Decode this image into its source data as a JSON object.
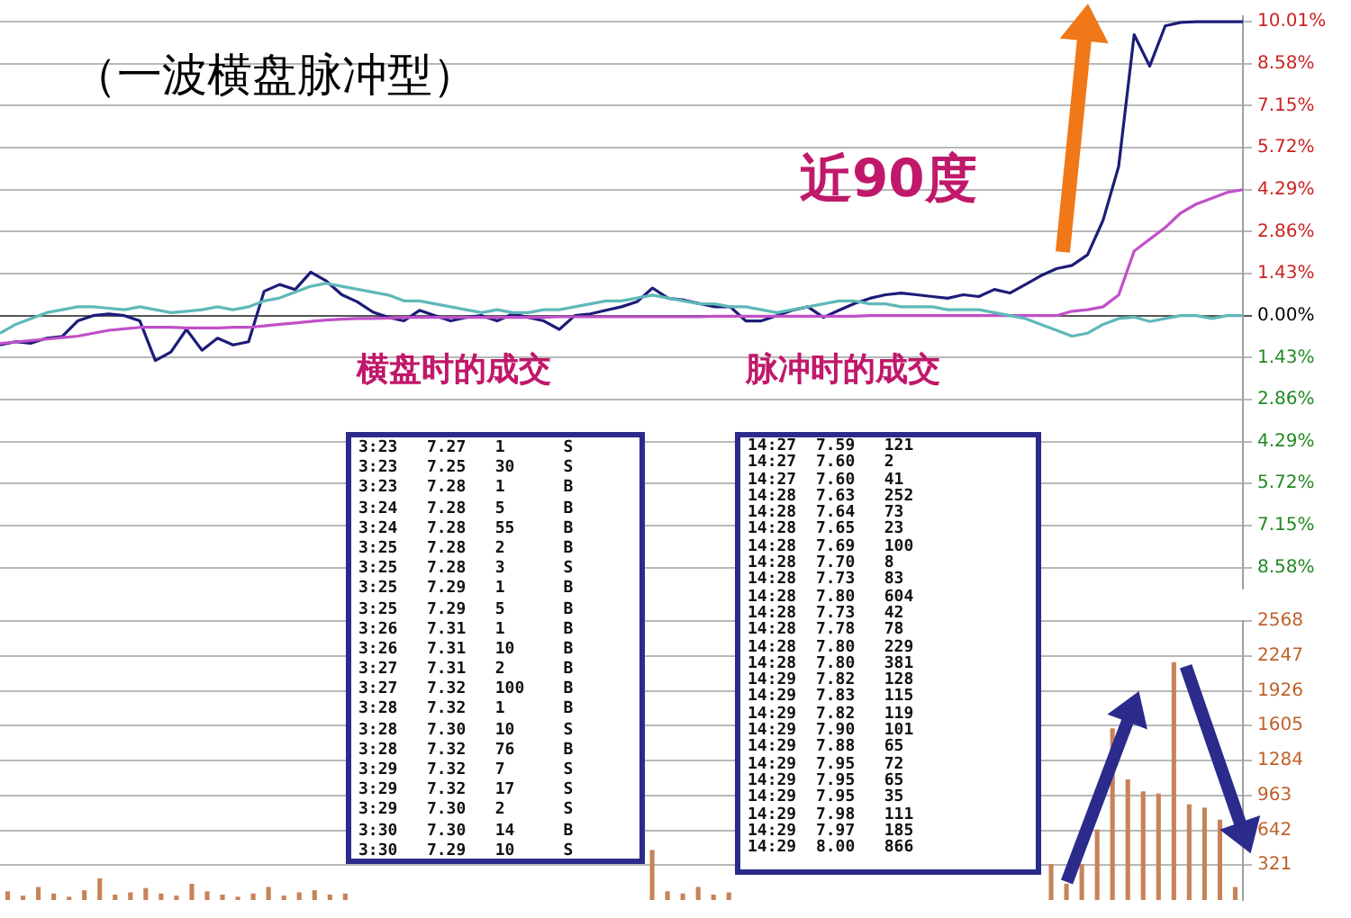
{
  "chart_data": [
    {
      "type": "line",
      "categories": [
        null,
        null,
        null,
        null,
        null,
        null,
        null,
        null,
        null,
        null,
        null,
        null,
        null,
        null,
        null,
        null,
        null,
        null,
        null,
        null,
        null,
        null,
        null,
        null,
        null,
        null,
        null,
        null,
        null,
        null,
        null,
        null,
        null,
        null,
        null,
        null,
        null,
        null,
        null,
        null,
        null,
        null,
        null,
        null,
        null,
        null,
        null,
        null,
        null,
        null,
        null,
        null,
        null,
        null,
        null,
        null,
        null,
        null,
        null,
        null,
        null,
        null,
        null,
        null,
        null,
        null,
        null,
        null,
        null,
        null,
        null,
        null,
        null,
        null,
        null,
        null,
        null,
        null,
        null,
        null,
        null
      ],
      "series": [
        {
          "color": "#5fb8b8",
          "values": [
            -0.6,
            -0.3,
            -0.1,
            0.1,
            0.2,
            0.3,
            0.3,
            0.25,
            0.2,
            0.3,
            0.2,
            0.1,
            0.15,
            0.2,
            0.3,
            0.2,
            0.3,
            0.5,
            0.6,
            0.8,
            1.0,
            1.1,
            1.0,
            0.9,
            0.8,
            0.7,
            0.5,
            0.5,
            0.4,
            0.3,
            0.2,
            0.1,
            0.2,
            0.1,
            0.1,
            0.2,
            0.2,
            0.3,
            0.4,
            0.5,
            0.5,
            0.6,
            0.7,
            0.6,
            0.5,
            0.4,
            0.4,
            0.3,
            0.3,
            0.2,
            0.1,
            0.2,
            0.3,
            0.4,
            0.5,
            0.5,
            0.4,
            0.4,
            0.3,
            0.3,
            0.3,
            0.2,
            0.2,
            0.2,
            0.1,
            0.0,
            -0.1,
            -0.3,
            -0.5,
            -0.7,
            -0.6,
            -0.3,
            -0.1,
            -0.05,
            -0.2,
            -0.1,
            0,
            0,
            -0.1,
            0,
            0
          ]
        },
        {
          "color": "#c050c8",
          "values": [
            -0.95,
            -0.9,
            -0.85,
            -0.8,
            -0.75,
            -0.7,
            -0.6,
            -0.5,
            -0.45,
            -0.4,
            -0.4,
            -0.4,
            -0.42,
            -0.42,
            -0.42,
            -0.4,
            -0.4,
            -0.35,
            -0.3,
            -0.25,
            -0.2,
            -0.15,
            -0.12,
            -0.1,
            -0.1,
            -0.08,
            -0.06,
            -0.06,
            -0.06,
            -0.06,
            -0.06,
            -0.06,
            -0.06,
            -0.06,
            -0.06,
            -0.06,
            -0.04,
            -0.04,
            -0.04,
            -0.04,
            -0.04,
            -0.04,
            -0.04,
            -0.04,
            -0.04,
            -0.04,
            -0.02,
            -0.02,
            -0.02,
            -0.02,
            -0.02,
            -0.02,
            -0.02,
            -0.02,
            -0.02,
            -0.02,
            0,
            0,
            0,
            0,
            0,
            0,
            0,
            0,
            0,
            0,
            0,
            0,
            0,
            0.15,
            0.2,
            0.3,
            0.7,
            2.2,
            2.6,
            3.0,
            3.5,
            3.8,
            4.0,
            4.2,
            4.29
          ]
        },
        {
          "color": "#1c1c78",
          "values": [
            -1.0,
            -0.89,
            -0.94,
            -0.77,
            -0.71,
            -0.18,
            0,
            0.06,
            0,
            -0.18,
            -1.53,
            -1.24,
            -0.47,
            -1.18,
            -0.77,
            -1.0,
            -0.89,
            0.83,
            1.06,
            0.89,
            1.48,
            1.18,
            0.71,
            0.47,
            0.12,
            -0.06,
            -0.18,
            0.18,
            0,
            -0.18,
            -0.06,
            0,
            -0.18,
            0.06,
            -0.06,
            -0.18,
            -0.47,
            0,
            0.06,
            0.18,
            0.3,
            0.47,
            0.94,
            0.59,
            0.53,
            0.41,
            0.3,
            0.3,
            -0.18,
            -0.18,
            0,
            0.18,
            0.3,
            -0.06,
            0.18,
            0.41,
            0.59,
            0.71,
            0.77,
            0.71,
            0.65,
            0.59,
            0.71,
            0.65,
            0.89,
            0.77,
            1.06,
            1.36,
            1.6,
            1.71,
            2.07,
            3.25,
            5.08,
            9.57,
            8.5,
            9.87,
            9.99,
            10.01,
            10.01,
            10.01,
            10.01
          ]
        }
      ],
      "ylim": [
        -9.3,
        10.2
      ],
      "yticks": [
        {
          "value": 10.01,
          "label": "10.01%"
        },
        {
          "value": 8.58,
          "label": "8.58%"
        },
        {
          "value": 7.15,
          "label": "7.15%"
        },
        {
          "value": 5.72,
          "label": "5.72%"
        },
        {
          "value": 4.29,
          "label": "4.29%"
        },
        {
          "value": 2.86,
          "label": "2.86%"
        },
        {
          "value": 1.43,
          "label": "1.43%"
        },
        {
          "value": 0,
          "label": "0.00%"
        },
        {
          "value": -1.43,
          "label": "1.43%"
        },
        {
          "value": -2.86,
          "label": "2.86%"
        },
        {
          "value": -4.29,
          "label": "4.29%"
        },
        {
          "value": -5.72,
          "label": "5.72%"
        },
        {
          "value": -7.15,
          "label": "7.15%"
        },
        {
          "value": -8.58,
          "label": "8.58%"
        }
      ],
      "grid": "y",
      "legend": false,
      "marker": "none",
      "tick_labels": "y",
      "annotations": [
        "（一波横盘脉冲型）",
        "近90度"
      ]
    },
    {
      "type": "bar",
      "categories": [
        null,
        null,
        null,
        null,
        null,
        null,
        null,
        null,
        null,
        null,
        null,
        null,
        null,
        null,
        null,
        null,
        null,
        null,
        null,
        null,
        null,
        null,
        null,
        null,
        null,
        null,
        null,
        null,
        null,
        null,
        null,
        null,
        null,
        null,
        null,
        null,
        null,
        null,
        null,
        null,
        null,
        null,
        null,
        null,
        null,
        null,
        null,
        null,
        null,
        null,
        null,
        null,
        null,
        null,
        null,
        null,
        null,
        null,
        null,
        null,
        null,
        null,
        null,
        null,
        null,
        null,
        null,
        null,
        null,
        null,
        null,
        null,
        null,
        null,
        null,
        null,
        null,
        null,
        null,
        null,
        null
      ],
      "values": [
        80,
        40,
        120,
        60,
        30,
        90,
        200,
        50,
        70,
        110,
        60,
        40,
        150,
        80,
        50,
        30,
        60,
        120,
        40,
        70,
        90,
        50,
        60,
        null,
        null,
        null,
        null,
        null,
        null,
        null,
        null,
        null,
        null,
        null,
        null,
        null,
        null,
        null,
        null,
        null,
        null,
        null,
        460,
        80,
        60,
        120,
        50,
        70,
        null,
        null,
        null,
        null,
        null,
        null,
        null,
        null,
        null,
        null,
        null,
        null,
        null,
        null,
        null,
        null,
        null,
        null,
        null,
        null,
        330,
        150,
        330,
        650,
        1580,
        1110,
        1000,
        980,
        2190,
        880,
        850,
        740,
        120
      ],
      "color": "#c8825a",
      "ylim": [
        0,
        2568
      ],
      "yticks": [
        321,
        642,
        963,
        1284,
        1605,
        1926,
        2247,
        2568
      ],
      "grid": "y",
      "legend": false,
      "tick_labels": "y"
    },
    {
      "type": "other",
      "title": "横盘时的成交",
      "annotations": [
        "3:23 7.27 1 S",
        "3:23 7.25 30 S",
        "3:23 7.28 1 B",
        "3:24 7.28 5 B",
        "3:24 7.28 55 B",
        "3:25 7.28 2 B",
        "3:25 7.28 3 S",
        "3:25 7.29 1 B",
        "3:25 7.29 5 B",
        "3:26 7.31 1 B",
        "3:26 7.31 10 B",
        "3:27 7.31 2 B",
        "3:27 7.32 100 B",
        "3:28 7.32 1 B",
        "3:28 7.30 10 S",
        "3:28 7.32 76 B",
        "3:29 7.32 7 S",
        "3:29 7.32 17 S",
        "3:29 7.30 2 S",
        "3:30 7.30 14 B",
        "3:30 7.29 10 S"
      ]
    },
    {
      "type": "other",
      "title": "脉冲时的成交",
      "annotations": [
        "14:27 7.59 121",
        "14:27 7.60 2",
        "14:27 7.60 41",
        "14:28 7.63 252",
        "14:28 7.64 73",
        "14:28 7.65 23",
        "14:28 7.69 100",
        "14:28 7.70 8",
        "14:28 7.73 83",
        "14:28 7.80 604",
        "14:28 7.73 42",
        "14:28 7.78 78",
        "14:28 7.80 229",
        "14:28 7.80 381",
        "14:29 7.82 128",
        "14:29 7.83 115",
        "14:29 7.82 119",
        "14:29 7.90 101",
        "14:29 7.88 65",
        "14:29 7.95 72",
        "14:29 7.95 65",
        "14:29 7.95 35",
        "14:29 7.98 111",
        "14:29 7.97 185",
        "14:29 8.00 866"
      ]
    }
  ]
}
